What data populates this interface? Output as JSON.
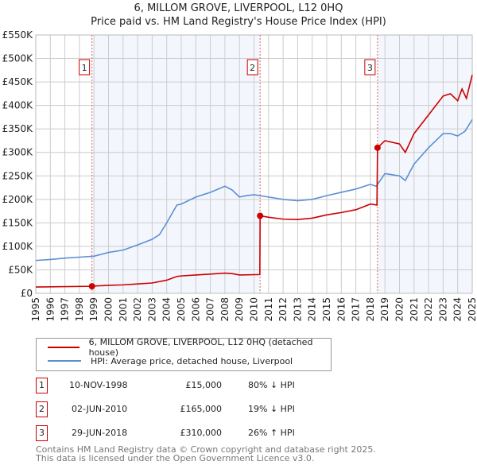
{
  "chart_data": {
    "type": "line",
    "title": "6, MILLOM GROVE, LIVERPOOL, L12 0HQ",
    "subtitle": "Price paid vs. HM Land Registry's House Price Index (HPI)",
    "xlim": [
      1995,
      2025
    ],
    "ylim": [
      0,
      550000
    ],
    "grid": true,
    "y_ticks": [
      {
        "v": 0,
        "l": "£0"
      },
      {
        "v": 50000,
        "l": "£50K"
      },
      {
        "v": 100000,
        "l": "£100K"
      },
      {
        "v": 150000,
        "l": "£150K"
      },
      {
        "v": 200000,
        "l": "£200K"
      },
      {
        "v": 250000,
        "l": "£250K"
      },
      {
        "v": 300000,
        "l": "£300K"
      },
      {
        "v": 350000,
        "l": "£350K"
      },
      {
        "v": 400000,
        "l": "£400K"
      },
      {
        "v": 450000,
        "l": "£450K"
      },
      {
        "v": 500000,
        "l": "£500K"
      },
      {
        "v": 550000,
        "l": "£550K"
      }
    ],
    "x_ticks": [
      "1995",
      "1996",
      "1997",
      "1998",
      "1999",
      "2000",
      "2001",
      "2002",
      "2003",
      "2004",
      "2005",
      "2006",
      "2007",
      "2008",
      "2009",
      "2010",
      "2011",
      "2012",
      "2013",
      "2014",
      "2015",
      "2016",
      "2017",
      "2018",
      "2019",
      "2020",
      "2021",
      "2022",
      "2023",
      "2024",
      "2025"
    ],
    "series": [
      {
        "name": "6, MILLOM GROVE, LIVERPOOL, L12 0HQ (detached house)",
        "color": "#cc0000",
        "x": [
          1995,
          1998.86,
          1999,
          2000,
          2001,
          2002,
          2003,
          2004,
          2004.7,
          2005,
          2006,
          2007,
          2008,
          2008.5,
          2009,
          2010.4,
          2010.42,
          2011,
          2012,
          2013,
          2014,
          2015,
          2016,
          2017,
          2018,
          2018.45,
          2018.49,
          2019,
          2020,
          2020.4,
          2021,
          2022,
          2023,
          2023.5,
          2024,
          2024.3,
          2024.6,
          2025
        ],
        "y": [
          13500,
          15000,
          15500,
          17000,
          18000,
          20000,
          22000,
          28000,
          36000,
          37000,
          39000,
          41000,
          43000,
          42000,
          39000,
          40000,
          165000,
          162000,
          158000,
          157000,
          160000,
          167000,
          172000,
          178000,
          190000,
          188000,
          310000,
          325000,
          318000,
          300000,
          340000,
          380000,
          420000,
          425000,
          410000,
          435000,
          415000,
          465000
        ]
      },
      {
        "name": "HPI: Average price, detached house, Liverpool",
        "color": "#5b8fd4",
        "x": [
          1995,
          1996,
          1997,
          1998,
          1999,
          2000,
          2001,
          2002,
          2003,
          2003.5,
          2004,
          2004.7,
          2005,
          2006,
          2007,
          2008,
          2008.5,
          2009,
          2009.5,
          2010,
          2011,
          2012,
          2013,
          2014,
          2015,
          2016,
          2017,
          2018,
          2018.4,
          2019,
          2020,
          2020.4,
          2021,
          2022,
          2023,
          2023.5,
          2024,
          2024.5,
          2025
        ],
        "y": [
          70000,
          72000,
          75000,
          77000,
          79000,
          87000,
          92000,
          103000,
          115000,
          125000,
          150000,
          188000,
          190000,
          205000,
          215000,
          228000,
          220000,
          205000,
          208000,
          210000,
          205000,
          200000,
          197000,
          200000,
          208000,
          215000,
          222000,
          232000,
          228000,
          255000,
          250000,
          240000,
          275000,
          310000,
          340000,
          340000,
          335000,
          345000,
          370000
        ]
      }
    ],
    "sales": [
      {
        "n": "1",
        "x": 1998.86,
        "price": 15000
      },
      {
        "n": "2",
        "x": 2010.42,
        "price": 165000
      },
      {
        "n": "3",
        "x": 2018.49,
        "price": 310000
      }
    ]
  },
  "legend": {
    "red": "6, MILLOM GROVE, LIVERPOOL, L12 0HQ (detached house)",
    "blue": "HPI: Average price, detached house, Liverpool"
  },
  "table": [
    {
      "n": "1",
      "date": "10-NOV-1998",
      "price": "£15,000",
      "hpi": "80% ↓ HPI"
    },
    {
      "n": "2",
      "date": "02-JUN-2010",
      "price": "£165,000",
      "hpi": "19% ↓ HPI"
    },
    {
      "n": "3",
      "date": "29-JUN-2018",
      "price": "£310,000",
      "hpi": "26% ↑ HPI"
    }
  ],
  "footer": {
    "line1": "Contains HM Land Registry data © Crown copyright and database right 2025.",
    "line2": "This data is licensed under the Open Government Licence v3.0."
  }
}
